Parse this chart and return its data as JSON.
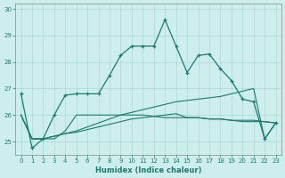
{
  "xlabel": "Humidex (Indice chaleur)",
  "bg_color": "#ceeeed",
  "grid_color": "#aad8d6",
  "line_color": "#1a7a6e",
  "xlim": [
    -0.5,
    23.5
  ],
  "ylim": [
    24.5,
    30.2
  ],
  "yticks": [
    25,
    26,
    27,
    28,
    29,
    30
  ],
  "xticks": [
    0,
    1,
    2,
    3,
    4,
    5,
    6,
    7,
    8,
    9,
    10,
    11,
    12,
    13,
    14,
    15,
    16,
    17,
    18,
    19,
    20,
    21,
    22,
    23
  ],
  "s1_x": [
    0,
    1,
    2,
    3,
    4,
    5,
    6,
    7,
    8,
    9,
    10,
    11,
    12,
    13,
    14,
    15,
    16,
    17,
    18,
    19,
    20,
    21,
    22,
    23
  ],
  "s1_y": [
    26.8,
    24.75,
    25.1,
    26.0,
    26.75,
    26.8,
    26.8,
    26.8,
    27.5,
    28.25,
    28.6,
    28.6,
    28.6,
    29.6,
    28.6,
    27.6,
    28.25,
    28.3,
    27.75,
    27.3,
    26.6,
    26.5,
    25.1,
    25.7
  ],
  "s2_x": [
    0,
    1,
    2,
    3,
    4,
    5,
    6,
    7,
    8,
    9,
    10,
    11,
    12,
    13,
    14,
    15,
    16,
    17,
    18,
    19,
    20,
    21,
    22,
    23
  ],
  "s2_y": [
    26.0,
    25.1,
    25.1,
    25.2,
    25.3,
    25.4,
    25.55,
    25.7,
    25.85,
    26.0,
    26.1,
    26.2,
    26.3,
    26.4,
    26.5,
    26.55,
    26.6,
    26.65,
    26.7,
    26.8,
    26.9,
    27.0,
    25.1,
    25.7
  ],
  "s3_x": [
    0,
    1,
    2,
    3,
    4,
    5,
    6,
    7,
    8,
    9,
    10,
    11,
    12,
    13,
    14,
    15,
    16,
    17,
    18,
    19,
    20,
    21,
    22,
    23
  ],
  "s3_y": [
    26.0,
    25.1,
    25.1,
    25.2,
    25.3,
    25.35,
    25.45,
    25.55,
    25.65,
    25.75,
    25.85,
    25.9,
    25.95,
    26.0,
    26.05,
    25.9,
    25.9,
    25.85,
    25.85,
    25.8,
    25.75,
    25.75,
    25.75,
    25.7
  ],
  "s4_x": [
    0,
    1,
    2,
    3,
    4,
    5,
    6,
    7,
    8,
    9,
    10,
    11,
    12,
    13,
    14,
    15,
    16,
    17,
    18,
    19,
    20,
    21,
    22,
    23
  ],
  "s4_y": [
    26.0,
    25.1,
    25.1,
    25.1,
    25.4,
    26.0,
    26.0,
    26.0,
    26.0,
    26.0,
    26.0,
    26.0,
    25.95,
    25.9,
    25.9,
    25.9,
    25.9,
    25.85,
    25.85,
    25.8,
    25.8,
    25.8,
    25.75,
    25.7
  ]
}
